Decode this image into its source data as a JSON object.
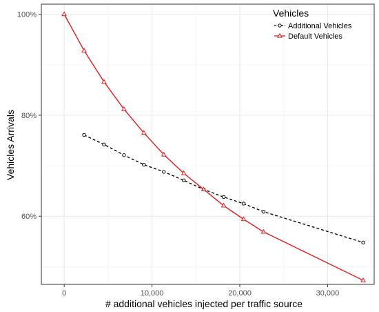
{
  "chart_data": {
    "type": "line",
    "title": "",
    "xlabel": "# additional vehicles injected per traffic source",
    "ylabel": "Vehicles Arrivals",
    "xlim": [
      -2600,
      35300
    ],
    "ylim": [
      46.5,
      102
    ],
    "x_ticks": [
      {
        "value": 0,
        "label": "0"
      },
      {
        "value": 10000,
        "label": "10,000"
      },
      {
        "value": 20000,
        "label": "20,000"
      },
      {
        "value": 30000,
        "label": "30,000"
      }
    ],
    "y_ticks": [
      {
        "value": 60,
        "label": "60%"
      },
      {
        "value": 80,
        "label": "80%"
      },
      {
        "value": 100,
        "label": "100%"
      }
    ],
    "grid": true,
    "legend": {
      "title": "Vehicles",
      "position": "top-right"
    },
    "series": [
      {
        "name": "Additional Vehicles",
        "color": "#000000",
        "line_style": "dashed",
        "marker": "circle-open",
        "x": [
          2270,
          4540,
          6810,
          9080,
          11350,
          13620,
          15890,
          18160,
          20430,
          22700,
          34050
        ],
        "y": [
          76.1,
          74.2,
          72.1,
          70.2,
          68.8,
          67.1,
          65.3,
          63.8,
          62.5,
          60.9,
          54.8
        ]
      },
      {
        "name": "Default Vehicles",
        "color": "#e41a1c",
        "line_style": "solid",
        "marker": "triangle-open",
        "x": [
          0,
          2270,
          4540,
          6810,
          9080,
          11350,
          13620,
          15890,
          18160,
          20430,
          22700,
          34050
        ],
        "y": [
          100.0,
          92.8,
          86.6,
          81.2,
          76.5,
          72.2,
          68.5,
          65.3,
          62.1,
          59.4,
          56.9,
          47.3
        ]
      }
    ]
  }
}
